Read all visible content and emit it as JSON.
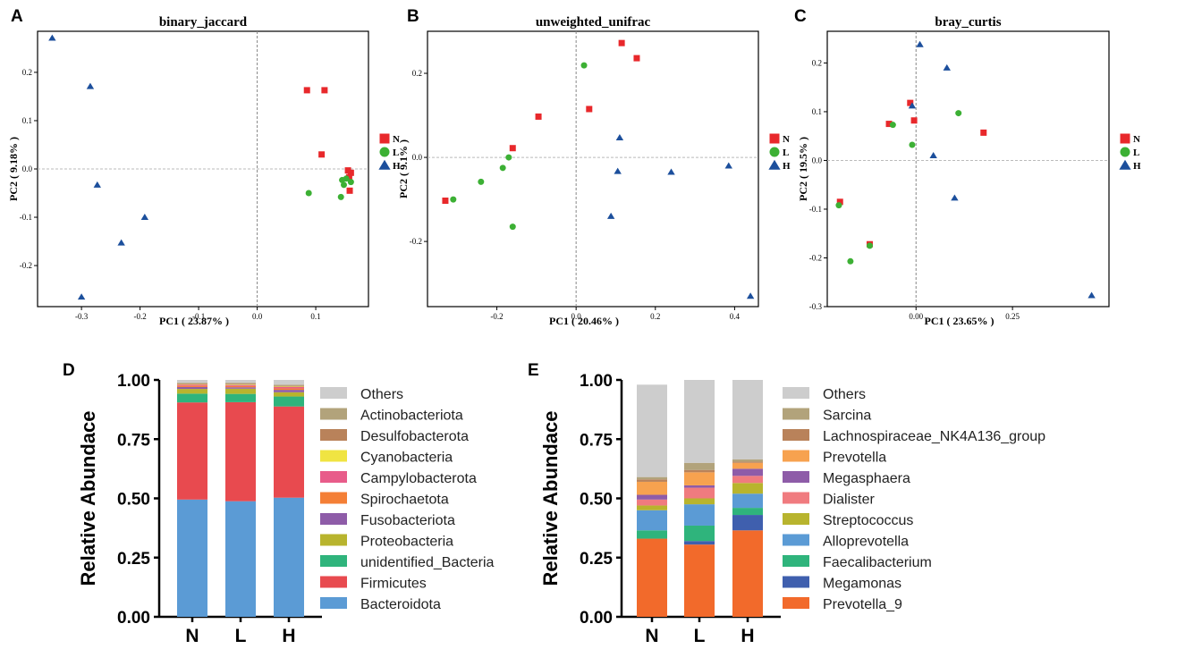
{
  "chart_data": [
    {
      "panel": "A",
      "type": "scatter",
      "title": "binary_jaccard",
      "xlabel": "PC1 ( 23.87% )",
      "ylabel": "PC2 ( 9.18% )",
      "xlim": [
        -0.375,
        0.19
      ],
      "ylim": [
        -0.285,
        0.285
      ],
      "xticks": [
        -0.3,
        -0.2,
        -0.1,
        0.0,
        0.1
      ],
      "xtick_labels": [
        "-0.3",
        "-0.2",
        "-0.1",
        "0.0",
        "0.1"
      ],
      "yticks": [
        -0.2,
        -0.1,
        0.0,
        0.1,
        0.2
      ],
      "ytick_labels": [
        "-0.2",
        "-0.1",
        "0.0",
        "0.1",
        "0.2"
      ],
      "series": [
        {
          "name": "N",
          "shape": "square",
          "color": "#e8282b",
          "points": [
            [
              0.085,
              0.163
            ],
            [
              0.115,
              0.163
            ],
            [
              0.11,
              0.03
            ],
            [
              0.155,
              -0.003
            ],
            [
              0.16,
              -0.008
            ],
            [
              0.157,
              -0.017
            ],
            [
              0.158,
              -0.045
            ]
          ]
        },
        {
          "name": "L",
          "shape": "circle",
          "color": "#3cb034",
          "points": [
            [
              0.088,
              -0.05
            ],
            [
              0.145,
              -0.023
            ],
            [
              0.152,
              -0.02
            ],
            [
              0.16,
              -0.027
            ],
            [
              0.148,
              -0.033
            ],
            [
              0.143,
              -0.058
            ]
          ]
        },
        {
          "name": "H",
          "shape": "triangle",
          "color": "#1c4f9c",
          "points": [
            [
              -0.35,
              0.271
            ],
            [
              -0.285,
              0.171
            ],
            [
              -0.273,
              -0.033
            ],
            [
              -0.192,
              -0.1
            ],
            [
              -0.232,
              -0.153
            ],
            [
              -0.3,
              -0.265
            ]
          ]
        }
      ]
    },
    {
      "panel": "B",
      "type": "scatter",
      "title": "unweighted_unifrac",
      "xlabel": "PC1 ( 20.46% )",
      "ylabel": "PC2 ( 9.1% )",
      "xlim": [
        -0.375,
        0.46
      ],
      "ylim": [
        -0.355,
        0.3
      ],
      "xticks": [
        -0.2,
        0.0,
        0.2,
        0.4
      ],
      "xtick_labels": [
        "-0.2",
        "0.0",
        "0.2",
        "0.4"
      ],
      "yticks": [
        -0.2,
        0.0,
        0.2
      ],
      "ytick_labels": [
        "-0.2",
        "0.0",
        "0.2"
      ],
      "series": [
        {
          "name": "N",
          "shape": "square",
          "color": "#e8282b",
          "points": [
            [
              0.115,
              0.272
            ],
            [
              0.153,
              0.236
            ],
            [
              0.033,
              0.115
            ],
            [
              -0.095,
              0.097
            ],
            [
              -0.16,
              0.022
            ],
            [
              -0.33,
              -0.103
            ]
          ]
        },
        {
          "name": "L",
          "shape": "circle",
          "color": "#3cb034",
          "points": [
            [
              0.02,
              0.219
            ],
            [
              -0.17,
              0.0
            ],
            [
              -0.185,
              -0.025
            ],
            [
              -0.24,
              -0.058
            ],
            [
              -0.31,
              -0.1
            ],
            [
              -0.16,
              -0.165
            ]
          ]
        },
        {
          "name": "H",
          "shape": "triangle",
          "color": "#1c4f9c",
          "points": [
            [
              0.11,
              0.047
            ],
            [
              0.105,
              -0.033
            ],
            [
              0.24,
              -0.035
            ],
            [
              0.385,
              -0.02
            ],
            [
              0.088,
              -0.14
            ],
            [
              0.44,
              -0.33
            ]
          ]
        }
      ]
    },
    {
      "panel": "C",
      "type": "scatter",
      "title": "bray_curtis",
      "xlabel": "PC1 ( 23.65% )",
      "ylabel": "PC2 ( 19.5% )",
      "xlim": [
        -0.23,
        0.5
      ],
      "ylim": [
        -0.3,
        0.265
      ],
      "xticks": [
        0.0,
        0.25
      ],
      "xtick_labels": [
        "0.00",
        "0.25"
      ],
      "yticks": [
        -0.3,
        -0.2,
        -0.1,
        0.0,
        0.1,
        0.2
      ],
      "ytick_labels": [
        "-0.3",
        "-0.2",
        "-0.1",
        "0.0",
        "0.1",
        "0.2"
      ],
      "series": [
        {
          "name": "N",
          "shape": "square",
          "color": "#e8282b",
          "points": [
            [
              -0.015,
              0.118
            ],
            [
              -0.005,
              0.082
            ],
            [
              -0.07,
              0.075
            ],
            [
              0.175,
              0.057
            ],
            [
              -0.197,
              -0.085
            ],
            [
              -0.12,
              -0.172
            ]
          ]
        },
        {
          "name": "L",
          "shape": "circle",
          "color": "#3cb034",
          "points": [
            [
              0.11,
              0.097
            ],
            [
              -0.06,
              0.073
            ],
            [
              -0.01,
              0.032
            ],
            [
              -0.2,
              -0.092
            ],
            [
              -0.12,
              -0.175
            ],
            [
              -0.17,
              -0.207
            ]
          ]
        },
        {
          "name": "H",
          "shape": "triangle",
          "color": "#1c4f9c",
          "points": [
            [
              0.01,
              0.238
            ],
            [
              0.08,
              0.19
            ],
            [
              -0.01,
              0.112
            ],
            [
              0.045,
              0.01
            ],
            [
              0.1,
              -0.077
            ],
            [
              0.455,
              -0.277
            ]
          ]
        }
      ]
    },
    {
      "panel": "D",
      "type": "bar",
      "stacked": true,
      "categories": [
        "N",
        "L",
        "H"
      ],
      "ylabel": "Relative Abundace",
      "ylim": [
        0,
        1
      ],
      "yticks": [
        0,
        0.25,
        0.5,
        0.75,
        1.0
      ],
      "ytick_labels": [
        "0.00",
        "0.25",
        "0.50",
        "0.75",
        "1.00"
      ],
      "series": [
        {
          "name": "Bacteroidota",
          "color": "#5b9bd5",
          "values": [
            0.495,
            0.488,
            0.503
          ]
        },
        {
          "name": "Firmicutes",
          "color": "#e84a4f",
          "values": [
            0.41,
            0.418,
            0.385
          ]
        },
        {
          "name": "unidentified_Bacteria",
          "color": "#2fb47c",
          "values": [
            0.037,
            0.035,
            0.042
          ]
        },
        {
          "name": "Proteobacteria",
          "color": "#b8b42e",
          "values": [
            0.02,
            0.022,
            0.018
          ]
        },
        {
          "name": "Fusobacteriota",
          "color": "#8e5ca8",
          "values": [
            0.008,
            0.006,
            0.01
          ]
        },
        {
          "name": "Spirochaetota",
          "color": "#f47f36",
          "values": [
            0.005,
            0.005,
            0.006
          ]
        },
        {
          "name": "Campylobacterota",
          "color": "#e85c8a",
          "values": [
            0.005,
            0.004,
            0.006
          ]
        },
        {
          "name": "Cyanobacteria",
          "color": "#f0e442",
          "values": [
            0.002,
            0.002,
            0.002
          ]
        },
        {
          "name": "Desulfobacterota",
          "color": "#b9825a",
          "values": [
            0.003,
            0.004,
            0.003
          ]
        },
        {
          "name": "Actinobacteriota",
          "color": "#b2a37b",
          "values": [
            0.003,
            0.004,
            0.005
          ]
        },
        {
          "name": "Others",
          "color": "#cdcdcd",
          "values": [
            0.012,
            0.012,
            0.02
          ]
        }
      ],
      "legend_order": [
        "Others",
        "Actinobacteriota",
        "Desulfobacterota",
        "Cyanobacteria",
        "Campylobacterota",
        "Spirochaetota",
        "Fusobacteriota",
        "Proteobacteria",
        "unidentified_Bacteria",
        "Firmicutes",
        "Bacteroidota"
      ]
    },
    {
      "panel": "E",
      "type": "bar",
      "stacked": true,
      "categories": [
        "N",
        "L",
        "H"
      ],
      "ylabel": "Relative Abundace",
      "ylim": [
        0,
        1
      ],
      "yticks": [
        0,
        0.25,
        0.5,
        0.75,
        1.0
      ],
      "ytick_labels": [
        "0.00",
        "0.25",
        "0.50",
        "0.75",
        "1.00"
      ],
      "series": [
        {
          "name": "Prevotella_9",
          "color": "#f26a2b",
          "values": [
            0.33,
            0.305,
            0.365
          ]
        },
        {
          "name": "Megamonas",
          "color": "#3f5fae",
          "values": [
            0.0,
            0.015,
            0.065
          ]
        },
        {
          "name": "Faecalibacterium",
          "color": "#2fb47c",
          "values": [
            0.035,
            0.065,
            0.03
          ]
        },
        {
          "name": "Alloprevotella",
          "color": "#5b9bd5",
          "values": [
            0.085,
            0.09,
            0.06
          ]
        },
        {
          "name": "Streptococcus",
          "color": "#b8b42e",
          "values": [
            0.02,
            0.025,
            0.045
          ]
        },
        {
          "name": "Dialister",
          "color": "#f07b7f",
          "values": [
            0.025,
            0.045,
            0.03
          ]
        },
        {
          "name": "Megasphaera",
          "color": "#8e5ca8",
          "values": [
            0.02,
            0.01,
            0.03
          ]
        },
        {
          "name": "Prevotella",
          "color": "#f7a24f",
          "values": [
            0.055,
            0.055,
            0.025
          ]
        },
        {
          "name": "Lachnospiraceae_NK4A136_group",
          "color": "#b9825a",
          "values": [
            0.01,
            0.01,
            0.005
          ]
        },
        {
          "name": "Sarcina",
          "color": "#b2a37b",
          "values": [
            0.01,
            0.03,
            0.01
          ]
        },
        {
          "name": "Others",
          "color": "#cdcdcd",
          "values": [
            0.39,
            0.35,
            0.335
          ]
        }
      ],
      "legend_order": [
        "Others",
        "Sarcina",
        "Lachnospiraceae_NK4A136_group",
        "Prevotella",
        "Megasphaera",
        "Dialister",
        "Streptococcus",
        "Alloprevotella",
        "Faecalibacterium",
        "Megamonas",
        "Prevotella_9"
      ]
    }
  ]
}
